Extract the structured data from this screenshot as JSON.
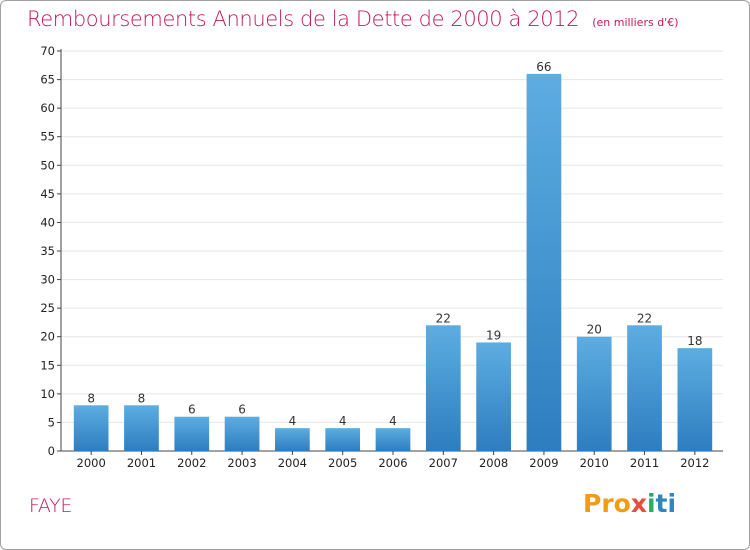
{
  "header": {
    "title": "Remboursements Annuels de la Dette de 2000 à 2012",
    "subtitle": "(en milliers d'€)"
  },
  "footer": {
    "commune": "FAYE",
    "logo": [
      "Pro",
      "x",
      "i",
      "ti"
    ]
  },
  "colors": {
    "title": "#c2185b",
    "bar_top": "#5dade2",
    "bar_bottom": "#2e7dbf",
    "grid": "#e6e6e6"
  },
  "chart_data": {
    "type": "bar",
    "title": "Remboursements Annuels de la Dette de 2000 à 2012",
    "subtitle": "(en milliers d'€)",
    "xlabel": "",
    "ylabel": "",
    "categories": [
      "2000",
      "2001",
      "2002",
      "2003",
      "2004",
      "2005",
      "2006",
      "2007",
      "2008",
      "2009",
      "2010",
      "2011",
      "2012"
    ],
    "values": [
      8,
      8,
      6,
      6,
      4,
      4,
      4,
      22,
      19,
      66,
      20,
      22,
      18
    ],
    "ylim": [
      0,
      70
    ],
    "yticks": [
      0,
      5,
      10,
      15,
      20,
      25,
      30,
      35,
      40,
      45,
      50,
      55,
      60,
      65,
      70
    ],
    "grid": true,
    "legend": "none"
  }
}
